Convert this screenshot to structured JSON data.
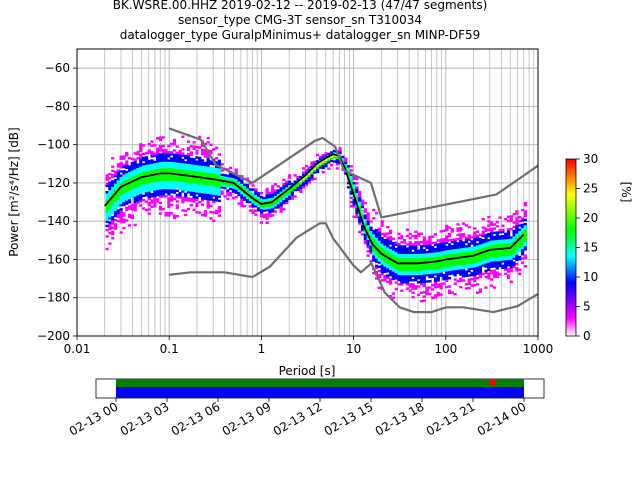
{
  "title": {
    "line1": "BK.WSRE.00.HHZ   2019-02-12 -- 2019-02-13  (47/47 segments)",
    "line2": "sensor_type CMG-3T sensor_sn T310034",
    "line3": "datalogger_type GuralpMinimus+ datalogger_sn MINP-DF59"
  },
  "chart_data": [
    {
      "type": "heatmap",
      "xlabel": "Period [s]",
      "ylabel": "Power [m²/s⁴/Hz] [dB]",
      "xscale": "log",
      "xlim": [
        0.01,
        1000
      ],
      "ylim": [
        -200,
        -50
      ],
      "xticks": [
        0.01,
        0.1,
        1,
        10,
        100,
        1000
      ],
      "xtick_labels": [
        "0.01",
        "0.1",
        "1",
        "10",
        "100",
        "1000"
      ],
      "yticks": [
        -200,
        -180,
        -160,
        -140,
        -120,
        -100,
        -80,
        -60
      ],
      "ytick_labels": [
        "−200",
        "−180",
        "−160",
        "−140",
        "−120",
        "−100",
        "−80",
        "−60"
      ],
      "grid": true,
      "colorbar": {
        "label": "[%]",
        "min": 0,
        "max": 30,
        "ticks": [
          0,
          5,
          10,
          15,
          20,
          25,
          30
        ],
        "colormap": [
          "#ffffff",
          "#ff00ff",
          "#0000ff",
          "#00ffff",
          "#00ff00",
          "#ffff00",
          "#ff0000"
        ]
      },
      "series": [
        {
          "role": "mode-line",
          "color": "#000000",
          "x": [
            0.02,
            0.03,
            0.05,
            0.08,
            0.1,
            0.15,
            0.3,
            0.5,
            0.8,
            1.0,
            1.3,
            2,
            3,
            4,
            5,
            6,
            7,
            8,
            10,
            13,
            16,
            20,
            30,
            50,
            80,
            100,
            200,
            300,
            500,
            700
          ],
          "y": [
            -132,
            -122,
            -117,
            -115,
            -115,
            -116,
            -118,
            -120,
            -128,
            -131,
            -130,
            -123,
            -116,
            -110,
            -107,
            -105,
            -106,
            -112,
            -126,
            -143,
            -152,
            -157,
            -162,
            -162,
            -161,
            -160,
            -158,
            -155,
            -154,
            -147
          ]
        },
        {
          "role": "noise-model-high",
          "color": "#6e6e6e",
          "x": [
            0.1,
            0.22,
            0.32,
            0.8,
            3.8,
            4.6,
            6.3,
            7.9,
            15.4,
            20,
            354.8,
            1000
          ],
          "y": [
            -91.5,
            -97.4,
            -110.5,
            -120,
            -98,
            -96.5,
            -101,
            -113.5,
            -120,
            -138,
            -126,
            -111
          ]
        },
        {
          "role": "noise-model-low",
          "color": "#6e6e6e",
          "x": [
            0.1,
            0.17,
            0.4,
            0.8,
            1.24,
            2.4,
            4.3,
            5.0,
            6.0,
            10,
            12,
            15.6,
            21.9,
            31.6,
            45,
            70,
            101,
            154,
            328,
            600,
            1000
          ],
          "y": [
            -168,
            -166.7,
            -166.7,
            -169.2,
            -163.7,
            -148.6,
            -141.1,
            -141.1,
            -149,
            -163.2,
            -166.7,
            -162,
            -177.5,
            -185,
            -187.5,
            -187.5,
            -185,
            -185,
            -187.5,
            -184.4,
            -178
          ]
        }
      ]
    },
    {
      "type": "timeline",
      "xtick_labels": [
        "02-13 00",
        "02-13 03",
        "02-13 06",
        "02-13 09",
        "02-13 12",
        "02-13 15",
        "02-13 18",
        "02-13 21",
        "02-14 00"
      ],
      "bands": [
        {
          "name": "data-coverage",
          "color": "#0000ff"
        },
        {
          "name": "psd-segments",
          "color": "#008000"
        },
        {
          "name": "gaps",
          "color": "#ff0000"
        }
      ]
    }
  ]
}
